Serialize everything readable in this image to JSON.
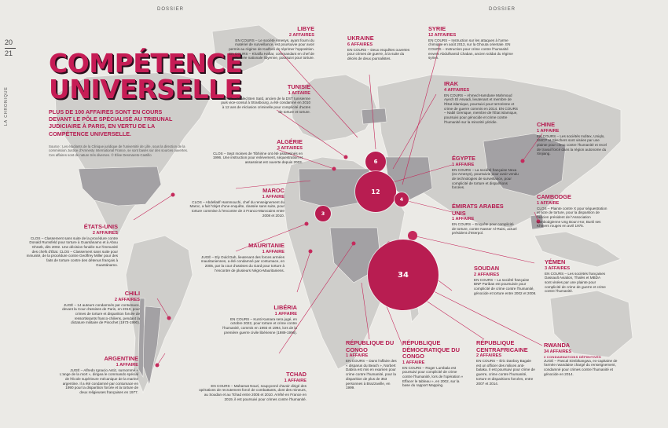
{
  "header": {
    "left": "DOSSIER",
    "right": "DOSSIER",
    "page_top": "20",
    "page_bottom": "21",
    "section": "LA CHRONIQUE"
  },
  "title": "COMPÉTENCE UNIVERSELLE",
  "lead": "PLUS DE 100 AFFAIRES SONT EN COURS DEVANT LE PÔLE SPÉCIALISÉ AU TRIBUNAL JUDICIAIRE À PARIS, EN VERTU DE LA COMPÉTENCE UNIVERSELLE.",
  "source": "Source : Les étudiants de la Clinique juridique de l'université de Lille, sous la direction de la commission Justice d'Amnesty International France, se sont basés sur des sources ouvertes. Ces affaires sont de nature très diverses. © Élise Desmarets-Castillo",
  "colors": {
    "accent": "#b81d51",
    "land": "#c9c8c6",
    "highlight": "#a19fa2"
  },
  "bubbles": [
    {
      "value": "6"
    },
    {
      "value": "12"
    },
    {
      "value": "4"
    },
    {
      "value": "3"
    },
    {
      "value": "34"
    }
  ],
  "countries": {
    "libye": {
      "name": "LIBYE",
      "count": "2 AFFAIRES",
      "text": "EN COURS – Le société Amesys, ayant fourni du matériel de surveillance, est poursuivie pour avoir permis au régime de Kadhafi de réprimer l'opposition. EN COURS – Khalifa Haftar, commandant en chef de l'armée nationale libyenne, poursuivi pour torture."
    },
    "tunisie": {
      "name": "TUNISIE",
      "count": "1 AFFAIRE",
      "text": "JUGÉ – Khaled Ben Saïd, ancien de la DST tunisienne puis vice-consul à Strasbourg, a été condamné en 2010 à 12 ans de réclusion criminelle pour complicité d'actes de torture et torture."
    },
    "algerie": {
      "name": "ALGÉRIE",
      "count": "3 AFFAIRES",
      "text": "CLOS – Sept moines de Tibhirine ont été assassinés en 1996. Une instruction pour enlèvement, séquestration et assassinat est ouverte depuis 2003."
    },
    "maroc": {
      "name": "MAROC",
      "count": "1 AFFAIRE",
      "text": "CLOS – Abdellatif Hammouchi, chef du renseignement du Maroc, a fait l'objet d'une enquête, classée sans suite, pour torture commise à l'encontre de 3 Franco-Marocains entre 2008 et 2010."
    },
    "mauritanie": {
      "name": "MAURITANIE",
      "count": "1 AFFAIRE",
      "text": "JUGÉ – Ely Ould Dah, lieutenant des forces armées mauritaniennes, a été condamné par contumace, en 2005, par la cour d'assises du Gard pour torture à l'encontre de plusieurs Négro-Mauritaniens."
    },
    "liberia": {
      "name": "LIBÉRIA",
      "count": "1 AFFAIRE",
      "text": "EN COURS – Kunti Kamara sera jugé, en octobre 2022, pour torture et crime contre l'humanité, commis en 1993 et 1994, lors de la première guerre civile libérienne (1989-1996)."
    },
    "etats_unis": {
      "name": "ÉTATS-UNIS",
      "count": "2 AFFAIRES",
      "text": "CLOS – Classement sans suite de la procédure contre Donald Rumsfeld pour torture à Guantánamo et à Abou Ghraïb, dès 2002. Une décision fondée sur l'immunité des chefs d'État. CLOS – Classement sans suite pour mmunité, de la procédure contre Geoffrey Miller pour des faits de torture contre des détenus français à Guantánamo."
    },
    "chili": {
      "name": "CHILI",
      "count": "2 AFFAIRES",
      "text": "JUGÉ – 14 auteurs condamnés par contumace, devant la Cour d'assises de Paris, en 2010, pour crimes de torture et disparition forcée de ressortissants franco-chiliens, pendant la dictature militaire de Pinochet (1973-1990)."
    },
    "argentine": {
      "name": "ARGENTINE",
      "count": "1 AFFAIRE",
      "text": "JUGÉ – Alfredo Ignacio Astiz, surnommé « L'ange de la mort », dirigea le commando spécial de l'École supérieure mécanique de la marine argentine. Il a été condamné par contumace en 1990 pour la disparition forcée et la torture de deux religieuses françaises en 1977."
    },
    "tchad": {
      "name": "TCHAD",
      "count": "1 AFFAIRE",
      "text": "EN COURS – Mahamat Nouri, soupçonné d'avoir dirigé des opérations de recrutement forcé de combattants, dont des mineurs, au Soudan et au Tchad entre 2005 et 2010. Arrêté en France en 2019, il est poursuivi pour crimes contre l'humanité."
    },
    "rep_congo": {
      "name": "RÉPUBLIQUE DU CONGO",
      "count": "1 AFFAIRE",
      "text": "EN COURS – Dans l'affaire des « disparus du Beach », Norbert Dabira est mis en examen pour crime contre l'humanité, pour la disparition de plus de 353 personnes à Brazzaville, en 1999."
    },
    "rdc": {
      "name": "RÉPUBLIQUE DÉMOCRATIQUE DU CONGO",
      "count": "1 AFFAIRE",
      "text": "EN COURS – Roger Lumbala est poursuivi pour complicité de crime contre l'humanité, lors de l'opération « Effacer le tableau », en 2002, sur la base du rapport Mapping."
    },
    "centrafrique": {
      "name": "RÉPUBLIQUE CENTRAFRICAINE",
      "count": "2 AFFAIRES",
      "text": "EN COURS – Éric Danboy Bagale est un officier des milices anti-balaka. Il est poursuivi pour crime de guerre, crime contre l'humanité, torture et disparitions forcées, entre 2007 et 2014."
    },
    "rwanda": {
      "name": "RWANDA",
      "count": "34 AFFAIRES",
      "status": "3 CONDAMNATIONS DÉFINITIVES",
      "text": "JUGÉ – Pascal Simbikangwa, ex-capitaine de l'armée rwandaise chargé du renseignement, condamné pour crimes contre l'humanité et génocide en 2014."
    },
    "soudan": {
      "name": "SOUDAN",
      "count": "2 AFFAIRES",
      "text": "EN COURS – La société française BNP Paribas est poursuivie pour complicité de crime contre l'humanité, génocide et torture entre 2002 et 2008."
    },
    "yemen": {
      "name": "YÉMEN",
      "count": "3 AFFAIRES",
      "text": "EN COURS – Les sociétés françaises Dassault Aviation, Thalès et MBDA sont visées par une plainte pour complicité de crime de guerre et crime contre l'humanité."
    },
    "cambodge": {
      "name": "CAMBODGE",
      "count": "1 AFFAIRE",
      "text": "CLOS – Plainte contre X pour séquestration et acte de torture, pour la disparition de l'ancien président de l'Association cambodgienne Ung Boun Hor, Bunli ses Khmers rouges en avril 1975."
    },
    "chine": {
      "name": "CHINE",
      "count": "1 AFFAIRE",
      "text": "EN COURS – Les sociétés Inditex, Uniqlo, SMCP et Skechers sont visées par une plainte pour crime contre l'humanité et recel de travail forcé dans la région autonome du Xinjiang."
    },
    "emirats": {
      "name": "ÉMIRATS ARABES UNIS",
      "count": "1 AFFAIRE",
      "text": "EN COURS – Enquête pour complicité de torture, contre Nasser Al-Raisi, actuel président d'Interpol."
    },
    "egypte": {
      "name": "ÉGYPTE",
      "count": "1 AFFAIRE",
      "text": "EN COURS – La société française Nexa (ex-Amesys), poursuivie pour avoir vendu de technologies de surveillance, pour complicité de torture et disparitions forcées."
    },
    "irak": {
      "name": "IRAK",
      "count": "4 AFFAIRES",
      "text": "EN COURS – Ahmed Hamdane Mahmoud Ayech El Aswadi, lieutenant et membre de l'État islamique, poursuivi pour terrorisme et crime de guerre commis en 2014. EN COURS – Nabil Grenique, membre de l'État islamique, poursuivi pour génocide et crime contre l'humanité sur la minorité yézidie."
    },
    "syrie": {
      "name": "SYRIE",
      "count": "12 AFFAIRES",
      "text": "EN COURS – Instruction sur les attaques à l'arme chimique en août 2013, sur la Ghouta orientale. EN COURS – Instruction pour crime contre l'humanité envers Abdulhamid Chaban, ancien soldat du régime syrien."
    },
    "ukraine": {
      "name": "UKRAINE",
      "count": "6 AFFAIRES",
      "text": "EN COURS – Deux enquêtes ouvertes pour crimes de guerre, à la suite du décès de deux journalistes."
    }
  }
}
